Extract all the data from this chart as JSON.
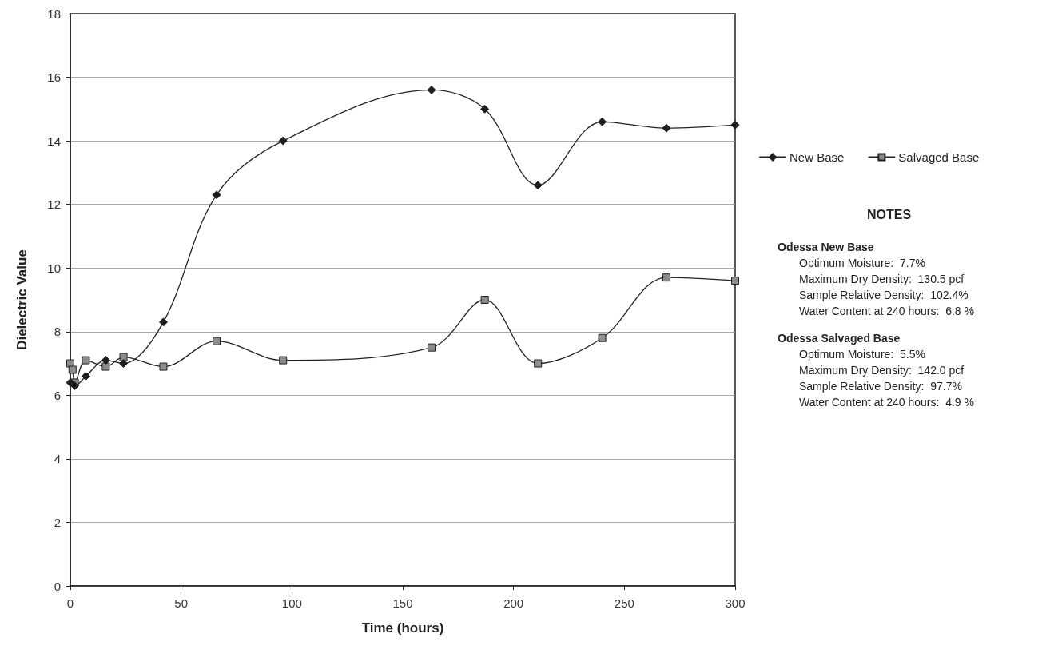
{
  "chart_data": {
    "type": "line",
    "xlabel": "Time (hours)",
    "ylabel": "Dielectric Value",
    "xlim": [
      0,
      300
    ],
    "xticks": [
      0,
      50,
      100,
      150,
      200,
      250,
      300
    ],
    "ylim": [
      0,
      18
    ],
    "yticks": [
      0,
      2,
      4,
      6,
      8,
      10,
      12,
      14,
      16,
      18
    ],
    "grid": "y",
    "legend": "right",
    "line_style": "solid",
    "series": [
      {
        "name": "New Base",
        "color": "#1e1e1e",
        "marker": "diamond",
        "x": [
          0,
          2,
          7,
          16,
          24,
          42,
          66,
          96,
          163,
          187,
          211,
          240,
          269,
          300
        ],
        "values": [
          6.4,
          6.3,
          6.6,
          7.1,
          7.0,
          8.3,
          12.3,
          14.0,
          15.6,
          15.0,
          12.6,
          14.6,
          14.4,
          14.5
        ]
      },
      {
        "name": "Salvaged Base",
        "color": "#8c8c8c",
        "marker": "square",
        "x": [
          0,
          1,
          2,
          7,
          16,
          24,
          42,
          66,
          96,
          163,
          187,
          211,
          240,
          269,
          300
        ],
        "values": [
          7.0,
          6.8,
          6.4,
          7.1,
          6.9,
          7.2,
          6.9,
          7.7,
          7.1,
          7.5,
          9.0,
          7.0,
          7.8,
          9.7,
          9.6
        ]
      }
    ],
    "annotations": [
      "NOTES",
      "Odessa New Base",
      "Optimum Moisture:  7.7%",
      "Maximum Dry Density:  130.5 pcf",
      "Sample Relative Density:  102.4%",
      "Water Content at 240 hours:  6.8 %",
      "Odessa Salvaged Base",
      "Optimum Moisture:  5.5%",
      "Maximum Dry Density:  142.0 pcf",
      "Sample Relative Density:  97.7%",
      "Water Content at 240 hours:  4.9 %"
    ]
  }
}
